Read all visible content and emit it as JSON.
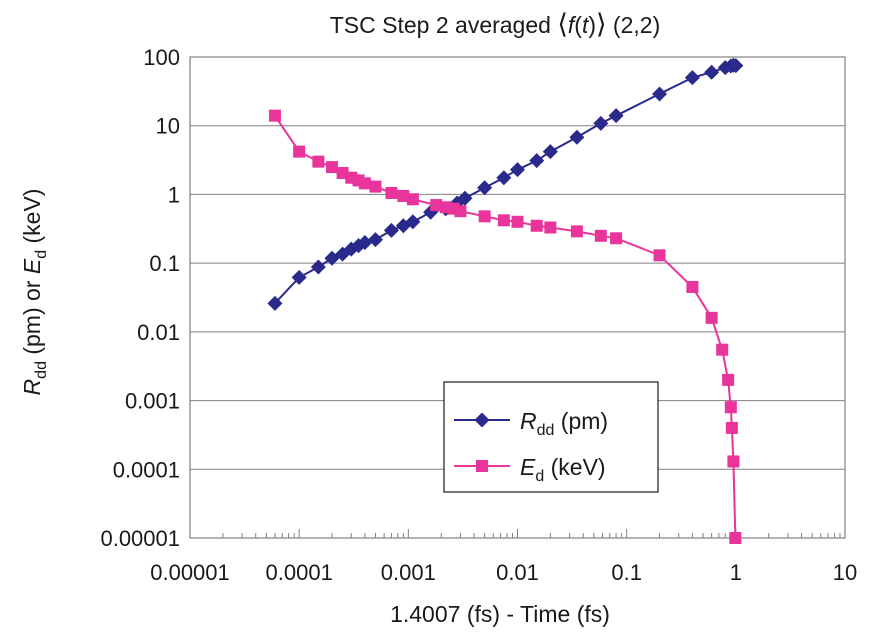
{
  "chart_data": {
    "type": "line",
    "title": {
      "prefix": "TSC Step 2 averaged ",
      "open": "⟨",
      "func": "f",
      "lparen": "(",
      "var": "t",
      "rparen": ")",
      "close": "⟩",
      "suffix": " (2,2)"
    },
    "xlabel": "1.4007 (fs) - Time (fs)",
    "ylabel": {
      "r_sym": "R",
      "r_sub": "dd",
      "r_unit": " (pm) or ",
      "e_sym": "E",
      "e_sub": "d",
      "e_unit": " (keV)"
    },
    "x_scale": "log",
    "y_scale": "log",
    "xlim": [
      1e-05,
      10
    ],
    "ylim": [
      1e-05,
      100
    ],
    "x_ticks": [
      {
        "value": 1e-05,
        "label": "0.00001"
      },
      {
        "value": 0.0001,
        "label": "0.0001"
      },
      {
        "value": 0.001,
        "label": "0.001"
      },
      {
        "value": 0.01,
        "label": "0.01"
      },
      {
        "value": 0.1,
        "label": "0.1"
      },
      {
        "value": 1,
        "label": "1"
      },
      {
        "value": 10,
        "label": "10"
      }
    ],
    "y_ticks": [
      {
        "value": 100,
        "label": "100"
      },
      {
        "value": 10,
        "label": "10"
      },
      {
        "value": 1,
        "label": "1"
      },
      {
        "value": 0.1,
        "label": "0.1"
      },
      {
        "value": 0.01,
        "label": "0.01"
      },
      {
        "value": 0.001,
        "label": "0.001"
      },
      {
        "value": 0.0001,
        "label": "0.0001"
      },
      {
        "value": 1e-05,
        "label": "0.00001"
      }
    ],
    "grid": "horizontal major lines",
    "legend_position": "center-right",
    "series": [
      {
        "name": "R_dd (pm)",
        "legend": {
          "sym": "R",
          "sub": "dd",
          "unit": " (pm)"
        },
        "color": "#2a2a8c",
        "marker": "diamond",
        "x": [
          6e-05,
          0.0001,
          0.00015,
          0.0002,
          0.00025,
          0.0003,
          0.00035,
          0.0004,
          0.0005,
          0.0007,
          0.0009,
          0.0011,
          0.0016,
          0.0022,
          0.0028,
          0.0033,
          0.005,
          0.0075,
          0.01,
          0.015,
          0.02,
          0.035,
          0.058,
          0.08,
          0.2,
          0.4,
          0.6,
          0.8,
          0.9,
          0.95,
          1.0
        ],
        "y": [
          0.026,
          0.062,
          0.088,
          0.118,
          0.135,
          0.16,
          0.18,
          0.2,
          0.22,
          0.3,
          0.35,
          0.4,
          0.55,
          0.62,
          0.75,
          0.88,
          1.25,
          1.75,
          2.3,
          3.1,
          4.2,
          6.8,
          10.8,
          14.0,
          29.0,
          50.0,
          60.0,
          70.0,
          74.0,
          76.0,
          75.0
        ]
      },
      {
        "name": "E_d (keV)",
        "legend": {
          "sym": "E",
          "sub": "d",
          "unit": " (keV)"
        },
        "color": "#e8349b",
        "marker": "square",
        "x": [
          6e-05,
          0.0001,
          0.00015,
          0.0002,
          0.00025,
          0.0003,
          0.00035,
          0.0004,
          0.0005,
          0.0007,
          0.0009,
          0.0011,
          0.0018,
          0.0022,
          0.0026,
          0.003,
          0.005,
          0.0075,
          0.01,
          0.015,
          0.02,
          0.035,
          0.058,
          0.08,
          0.2,
          0.4,
          0.6,
          0.75,
          0.85,
          0.9,
          0.92,
          0.95,
          0.99
        ],
        "y": [
          14.0,
          4.2,
          3.0,
          2.5,
          2.05,
          1.75,
          1.6,
          1.45,
          1.3,
          1.05,
          0.95,
          0.85,
          0.7,
          0.65,
          0.62,
          0.57,
          0.48,
          0.42,
          0.4,
          0.35,
          0.33,
          0.29,
          0.25,
          0.23,
          0.13,
          0.045,
          0.016,
          0.0055,
          0.002,
          0.0008,
          0.0004,
          0.00013,
          1e-05
        ]
      }
    ]
  }
}
